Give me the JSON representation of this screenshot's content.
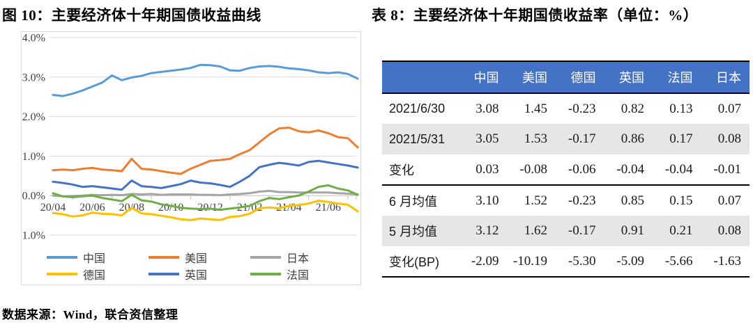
{
  "figure": {
    "title": "图 10：主要经济体十年期国债收益曲线"
  },
  "source_note": "数据来源：Wind，联合资信整理",
  "table_section": {
    "title": "表 8：主要经济体十年期国债收益率（单位：%）",
    "header_bg": "#4472C4",
    "stripe_bg": "#E7E6E6",
    "columns": [
      "",
      "中国",
      "美国",
      "德国",
      "英国",
      "法国",
      "日本"
    ],
    "rows": [
      {
        "label": "2021/6/30",
        "values": [
          "3.08",
          "1.45",
          "-0.23",
          "0.82",
          "0.13",
          "0.07"
        ],
        "shaded": false,
        "divider_below": false
      },
      {
        "label": "2021/5/31",
        "values": [
          "3.05",
          "1.53",
          "-0.17",
          "0.86",
          "0.17",
          "0.08"
        ],
        "shaded": true,
        "divider_below": false
      },
      {
        "label": "变化",
        "values": [
          "0.03",
          "-0.08",
          "-0.06",
          "-0.04",
          "-0.04",
          "-0.01"
        ],
        "shaded": false,
        "divider_below": true
      },
      {
        "label": "6 月均值",
        "values": [
          "3.10",
          "1.52",
          "-0.23",
          "0.85",
          "0.15",
          "0.07"
        ],
        "shaded": false,
        "divider_below": false
      },
      {
        "label": "5 月均值",
        "values": [
          "3.12",
          "1.62",
          "-0.17",
          "0.91",
          "0.21",
          "0.08"
        ],
        "shaded": true,
        "divider_below": false
      },
      {
        "label": "变化(BP)",
        "values": [
          "-2.09",
          "-10.19",
          "-5.30",
          "-5.09",
          "-5.66",
          "-1.63"
        ],
        "shaded": false,
        "divider_below": false
      }
    ]
  },
  "chart_data": {
    "type": "line",
    "title": "主要经济体十年期国债收益曲线",
    "xlabel": "",
    "ylabel": "",
    "ylim": [
      -1.0,
      4.0
    ],
    "grid": true,
    "legend_position": "bottom",
    "gridline_color": "#D9D9D9",
    "axis_color": "#BFBFBF",
    "ytick_values": [
      4.0,
      3.0,
      2.0,
      1.0,
      0.0,
      -1.0
    ],
    "ytick_labels": [
      "4.0%",
      "3.0%",
      "2.0%",
      "1.0%",
      "0.0%",
      "-1.0%"
    ],
    "xtick_labels": [
      "20/04",
      "20/06",
      "20/08",
      "20/10",
      "20/12",
      "21/02",
      "21/04",
      "21/06"
    ],
    "x_months": [
      0,
      0.5,
      1,
      1.5,
      2,
      2.5,
      3,
      3.5,
      4,
      4.5,
      5,
      5.5,
      6,
      6.5,
      7,
      7.5,
      8,
      8.5,
      9,
      9.5,
      10,
      10.5,
      11,
      11.5,
      12,
      12.5,
      13,
      13.5,
      14,
      14.5,
      15,
      15.5
    ],
    "legend_rows": [
      [
        "中国",
        "美国",
        "日本"
      ],
      [
        "德国",
        "英国",
        "法国"
      ]
    ],
    "series": [
      {
        "key": "china",
        "name": "中国",
        "color": "#5B9BD5",
        "values": [
          2.55,
          2.52,
          2.58,
          2.66,
          2.76,
          2.86,
          3.04,
          2.92,
          2.99,
          3.03,
          3.1,
          3.13,
          3.16,
          3.19,
          3.23,
          3.31,
          3.3,
          3.27,
          3.17,
          3.16,
          3.23,
          3.27,
          3.28,
          3.26,
          3.22,
          3.2,
          3.17,
          3.12,
          3.1,
          3.12,
          3.08,
          2.96
        ]
      },
      {
        "key": "us",
        "name": "美国",
        "color": "#ED7D31",
        "values": [
          0.64,
          0.66,
          0.64,
          0.68,
          0.7,
          0.66,
          0.64,
          0.62,
          0.93,
          0.68,
          0.66,
          0.62,
          0.58,
          0.55,
          0.68,
          0.78,
          0.88,
          0.9,
          0.93,
          1.05,
          1.15,
          1.35,
          1.55,
          1.7,
          1.72,
          1.63,
          1.6,
          1.65,
          1.58,
          1.48,
          1.45,
          1.22
        ]
      },
      {
        "key": "japan",
        "name": "日本",
        "color": "#A5A5A5",
        "values": [
          0.0,
          -0.02,
          -0.01,
          0.0,
          0.02,
          0.01,
          0.02,
          0.01,
          0.04,
          0.03,
          0.04,
          0.02,
          0.03,
          0.03,
          0.03,
          0.02,
          0.02,
          0.01,
          0.03,
          0.04,
          0.06,
          0.1,
          0.12,
          0.09,
          0.09,
          0.08,
          0.08,
          0.08,
          0.08,
          0.06,
          0.05,
          0.03
        ]
      },
      {
        "key": "germany",
        "name": "德国",
        "color": "#FFC000",
        "values": [
          -0.44,
          -0.47,
          -0.53,
          -0.5,
          -0.43,
          -0.46,
          -0.47,
          -0.5,
          -0.31,
          -0.45,
          -0.47,
          -0.51,
          -0.55,
          -0.6,
          -0.62,
          -0.58,
          -0.6,
          -0.62,
          -0.54,
          -0.52,
          -0.46,
          -0.32,
          -0.3,
          -0.32,
          -0.26,
          -0.24,
          -0.2,
          -0.13,
          -0.16,
          -0.2,
          -0.23,
          -0.4
        ]
      },
      {
        "key": "uk",
        "name": "英国",
        "color": "#4472C4",
        "values": [
          0.35,
          0.32,
          0.28,
          0.22,
          0.24,
          0.21,
          0.18,
          0.15,
          0.38,
          0.24,
          0.22,
          0.19,
          0.24,
          0.29,
          0.38,
          0.33,
          0.31,
          0.27,
          0.22,
          0.35,
          0.5,
          0.72,
          0.78,
          0.83,
          0.8,
          0.76,
          0.85,
          0.88,
          0.84,
          0.8,
          0.76,
          0.71
        ]
      },
      {
        "key": "france",
        "name": "法国",
        "color": "#70AD47",
        "values": [
          0.06,
          -0.02,
          -0.04,
          -0.02,
          0.0,
          -0.06,
          -0.1,
          -0.14,
          0.02,
          -0.12,
          -0.15,
          -0.22,
          -0.26,
          -0.31,
          -0.33,
          -0.34,
          -0.33,
          -0.36,
          -0.33,
          -0.3,
          -0.26,
          -0.14,
          -0.06,
          -0.09,
          -0.04,
          0.0,
          0.1,
          0.22,
          0.26,
          0.18,
          0.13,
          0.02
        ]
      }
    ]
  }
}
